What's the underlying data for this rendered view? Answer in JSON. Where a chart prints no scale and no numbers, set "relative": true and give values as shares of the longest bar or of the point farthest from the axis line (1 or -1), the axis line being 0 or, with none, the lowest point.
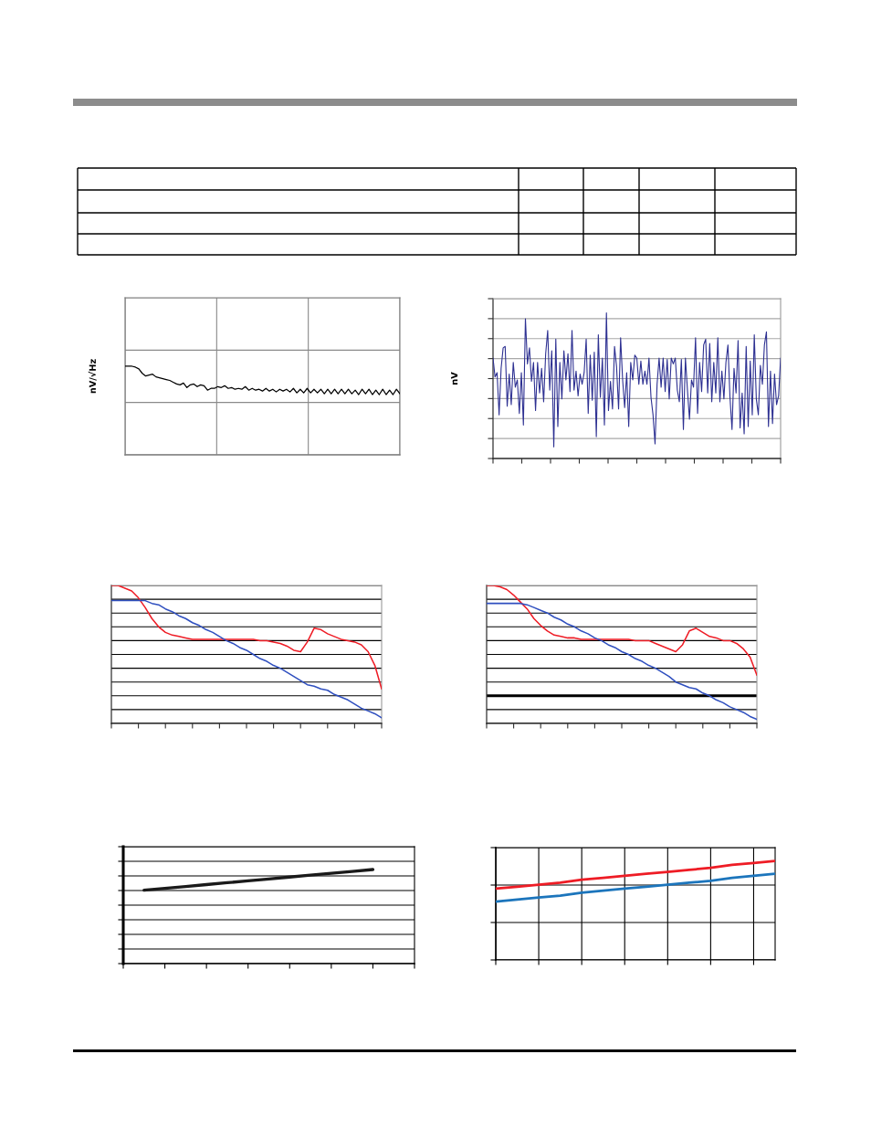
{
  "chart_data": [
    {
      "type": "line",
      "relative": true,
      "ylabel": "nV/√Hz",
      "grid": true,
      "tick_labels": false,
      "categories": [
        null,
        null,
        null,
        null,
        null,
        null,
        null,
        null,
        null,
        null,
        null,
        null,
        null,
        null,
        null,
        null,
        null,
        null,
        null,
        null,
        null,
        null,
        null,
        null,
        null,
        null,
        null,
        null,
        null,
        null,
        null,
        null,
        null,
        null,
        null,
        null,
        null,
        null,
        null,
        null,
        null,
        null,
        null,
        null,
        null,
        null,
        null,
        null,
        null,
        null,
        null,
        null,
        null,
        null,
        null,
        null,
        null,
        null,
        null,
        null,
        null,
        null,
        null,
        null,
        null,
        null,
        null,
        null,
        null,
        null,
        null,
        null,
        null,
        null,
        null,
        null,
        null,
        null,
        null,
        null,
        null
      ],
      "series": [
        {
          "color": "#000000",
          "values": [
            1.0,
            1.0,
            1.0,
            0.99,
            0.97,
            0.92,
            0.89,
            0.9,
            0.91,
            0.88,
            0.87,
            0.86,
            0.85,
            0.84,
            0.82,
            0.8,
            0.79,
            0.81,
            0.76,
            0.79,
            0.8,
            0.77,
            0.79,
            0.78,
            0.73,
            0.75,
            0.75,
            0.77,
            0.76,
            0.78,
            0.75,
            0.76,
            0.74,
            0.75,
            0.74,
            0.77,
            0.73,
            0.75,
            0.73,
            0.74,
            0.72,
            0.75,
            0.72,
            0.74,
            0.71,
            0.74,
            0.72,
            0.74,
            0.71,
            0.75,
            0.7,
            0.74,
            0.7,
            0.75,
            0.7,
            0.74,
            0.7,
            0.74,
            0.69,
            0.74,
            0.69,
            0.74,
            0.69,
            0.74,
            0.69,
            0.74,
            0.69,
            0.73,
            0.68,
            0.74,
            0.69,
            0.74,
            0.68,
            0.73,
            0.68,
            0.74,
            0.68,
            0.73,
            0.68,
            0.74,
            0.69
          ]
        }
      ]
    },
    {
      "type": "line",
      "relative": true,
      "ylabel": "nV",
      "grid": "y",
      "tick_labels": false,
      "categories": [
        null,
        null,
        null,
        null,
        null,
        null,
        null,
        null,
        null,
        null,
        null,
        null,
        null,
        null,
        null,
        null,
        null,
        null,
        null,
        null,
        null,
        null,
        null,
        null,
        null,
        null,
        null,
        null,
        null,
        null,
        null,
        null,
        null,
        null,
        null,
        null,
        null,
        null,
        null,
        null,
        null,
        null,
        null,
        null,
        null,
        null,
        null,
        null,
        null,
        null,
        null,
        null,
        null,
        null,
        null,
        null,
        null,
        null,
        null,
        null,
        null,
        null,
        null,
        null,
        null,
        null,
        null,
        null,
        null,
        null,
        null,
        null,
        null,
        null,
        null,
        null,
        null,
        null,
        null,
        null,
        null,
        null,
        null,
        null,
        null,
        null,
        null,
        null,
        null,
        null,
        null,
        null,
        null,
        null,
        null,
        null,
        null,
        null,
        null,
        null,
        null,
        null,
        null,
        null,
        null,
        null,
        null,
        null,
        null,
        null,
        null,
        null,
        null,
        null,
        null,
        null,
        null,
        null,
        null,
        null,
        null,
        null,
        null,
        null,
        null,
        null,
        null,
        null,
        null,
        null,
        null,
        null,
        null,
        null,
        null,
        null,
        null,
        null,
        null,
        null,
        null,
        null,
        null
      ],
      "series": [
        {
          "color": "#2e3192",
          "values": [
            0.69,
            0.56,
            0.59,
            0.3,
            0.62,
            0.76,
            0.77,
            0.36,
            0.58,
            0.37,
            0.66,
            0.49,
            0.54,
            0.31,
            0.59,
            0.23,
            0.96,
            0.65,
            0.76,
            0.53,
            0.66,
            0.33,
            0.66,
            0.45,
            0.62,
            0.39,
            0.72,
            0.88,
            0.47,
            0.74,
            0.08,
            0.82,
            0.22,
            0.66,
            0.41,
            0.74,
            0.54,
            0.72,
            0.46,
            0.88,
            0.47,
            0.6,
            0.43,
            0.58,
            0.51,
            0.59,
            0.82,
            0.31,
            0.71,
            0.4,
            0.73,
            0.15,
            0.85,
            0.42,
            0.69,
            0.23,
            1.0,
            0.33,
            0.53,
            0.34,
            0.77,
            0.63,
            0.34,
            0.83,
            0.54,
            0.35,
            0.59,
            0.22,
            0.66,
            0.54,
            0.71,
            0.69,
            0.51,
            0.67,
            0.51,
            0.6,
            0.51,
            0.69,
            0.42,
            0.3,
            0.1,
            0.51,
            0.69,
            0.49,
            0.69,
            0.46,
            0.68,
            0.41,
            0.69,
            0.65,
            0.69,
            0.47,
            0.39,
            0.68,
            0.2,
            0.69,
            0.47,
            0.27,
            0.54,
            0.49,
            0.83,
            0.31,
            0.66,
            0.46,
            0.78,
            0.82,
            0.45,
            0.79,
            0.39,
            0.66,
            0.45,
            0.83,
            0.39,
            0.6,
            0.41,
            0.66,
            0.78,
            0.42,
            0.2,
            0.62,
            0.45,
            0.81,
            0.21,
            0.45,
            0.17,
            0.77,
            0.22,
            0.67,
            0.3,
            0.85,
            0.41,
            0.3,
            0.64,
            0.51,
            0.78,
            0.87,
            0.22,
            0.6,
            0.24,
            0.58,
            0.37,
            0.43,
            0.69
          ]
        }
      ]
    },
    {
      "type": "line",
      "relative": true,
      "grid": "y",
      "tick_labels": false,
      "categories": [
        null,
        null,
        null,
        null,
        null,
        null,
        null,
        null,
        null,
        null,
        null,
        null,
        null,
        null,
        null,
        null,
        null,
        null,
        null,
        null,
        null,
        null,
        null,
        null,
        null,
        null,
        null,
        null,
        null,
        null,
        null,
        null,
        null,
        null,
        null,
        null,
        null,
        null,
        null,
        null,
        null
      ],
      "series": [
        {
          "color": "#ee1c25",
          "values": [
            1.0,
            1.0,
            0.98,
            0.96,
            0.91,
            0.84,
            0.76,
            0.7,
            0.66,
            0.64,
            0.63,
            0.62,
            0.61,
            0.61,
            0.61,
            0.61,
            0.61,
            0.61,
            0.61,
            0.61,
            0.61,
            0.61,
            0.6,
            0.6,
            0.59,
            0.58,
            0.56,
            0.53,
            0.52,
            0.59,
            0.69,
            0.68,
            0.65,
            0.63,
            0.61,
            0.6,
            0.59,
            0.57,
            0.52,
            0.42,
            0.25
          ]
        },
        {
          "color": "#2f4fbf",
          "values": [
            0.89,
            0.89,
            0.89,
            0.89,
            0.89,
            0.89,
            0.87,
            0.86,
            0.83,
            0.81,
            0.78,
            0.76,
            0.73,
            0.71,
            0.68,
            0.66,
            0.63,
            0.6,
            0.58,
            0.55,
            0.53,
            0.5,
            0.47,
            0.45,
            0.42,
            0.4,
            0.37,
            0.34,
            0.31,
            0.28,
            0.27,
            0.25,
            0.24,
            0.21,
            0.19,
            0.17,
            0.14,
            0.11,
            0.09,
            0.07,
            0.04
          ]
        }
      ]
    },
    {
      "type": "line",
      "relative": true,
      "grid": "y",
      "tick_labels": false,
      "categories": [
        null,
        null,
        null,
        null,
        null,
        null,
        null,
        null,
        null,
        null,
        null,
        null,
        null,
        null,
        null,
        null,
        null,
        null,
        null,
        null,
        null,
        null,
        null,
        null,
        null,
        null,
        null,
        null,
        null,
        null,
        null,
        null,
        null,
        null,
        null,
        null,
        null,
        null,
        null,
        null,
        null
      ],
      "ref_lines": [
        {
          "axis": "y",
          "value": 0.2,
          "color": "#000000"
        }
      ],
      "series": [
        {
          "color": "#ee1c25",
          "values": [
            1.0,
            1.0,
            0.99,
            0.97,
            0.93,
            0.88,
            0.83,
            0.76,
            0.71,
            0.67,
            0.64,
            0.63,
            0.62,
            0.62,
            0.61,
            0.61,
            0.61,
            0.61,
            0.61,
            0.61,
            0.61,
            0.61,
            0.6,
            0.6,
            0.6,
            0.58,
            0.56,
            0.54,
            0.52,
            0.57,
            0.67,
            0.69,
            0.66,
            0.63,
            0.62,
            0.6,
            0.6,
            0.58,
            0.54,
            0.48,
            0.35
          ]
        },
        {
          "color": "#2f4fbf",
          "values": [
            0.87,
            0.87,
            0.87,
            0.87,
            0.87,
            0.87,
            0.86,
            0.84,
            0.82,
            0.8,
            0.77,
            0.75,
            0.72,
            0.7,
            0.67,
            0.65,
            0.62,
            0.6,
            0.57,
            0.55,
            0.52,
            0.5,
            0.47,
            0.45,
            0.42,
            0.4,
            0.37,
            0.34,
            0.3,
            0.28,
            0.26,
            0.25,
            0.22,
            0.2,
            0.17,
            0.15,
            0.12,
            0.1,
            0.08,
            0.05,
            0.03
          ]
        }
      ]
    },
    {
      "type": "line",
      "relative": true,
      "grid": "y",
      "tick_labels": false,
      "categories": [
        null,
        null,
        null,
        null,
        null,
        null,
        null,
        null,
        null,
        null,
        null,
        null,
        null,
        null,
        null
      ],
      "series": [
        {
          "color": "#1a1a1a",
          "values": [
            null,
            0.78,
            0.8,
            0.82,
            0.84,
            0.86,
            0.88,
            0.9,
            0.92,
            0.94,
            0.96,
            0.98,
            1.0,
            null,
            null
          ]
        }
      ]
    },
    {
      "type": "line",
      "relative": true,
      "grid": true,
      "tick_labels": false,
      "categories": [
        null,
        null,
        null,
        null,
        null,
        null,
        null,
        null,
        null,
        null,
        null,
        null,
        null,
        null
      ],
      "series": [
        {
          "color": "#ee1c25",
          "values": [
            0.72,
            0.74,
            0.76,
            0.78,
            0.81,
            0.83,
            0.85,
            0.87,
            0.89,
            0.91,
            0.93,
            0.96,
            0.98,
            1.0
          ]
        },
        {
          "color": "#1c75bc",
          "values": [
            0.59,
            0.61,
            0.63,
            0.65,
            0.68,
            0.7,
            0.72,
            0.74,
            0.76,
            0.78,
            0.8,
            0.83,
            0.85,
            0.87
          ]
        }
      ]
    }
  ]
}
